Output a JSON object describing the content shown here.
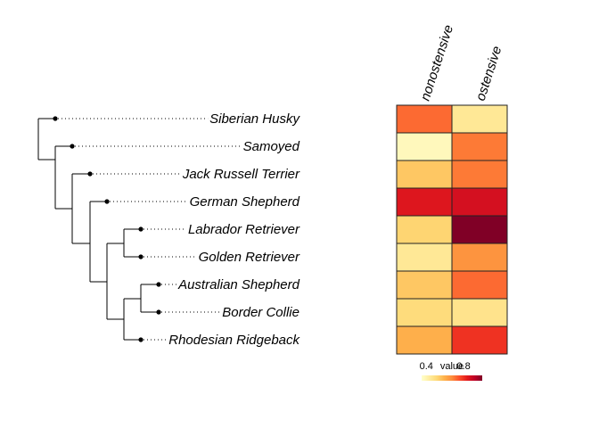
{
  "chart_data": {
    "type": "heatmap",
    "title": "",
    "rows": [
      "Siberian Husky",
      "Samoyed",
      "Jack Russell Terrier",
      "German Shepherd",
      "Labrador Retriever",
      "Golden Retriever",
      "Australian Shepherd",
      "Border Collie",
      "Rhodesian Ridgeback"
    ],
    "columns": [
      "nonostensive",
      "ostensive"
    ],
    "values": [
      [
        0.72,
        0.45
      ],
      [
        0.38,
        0.7
      ],
      [
        0.55,
        0.7
      ],
      [
        0.85,
        0.87
      ],
      [
        0.52,
        1.0
      ],
      [
        0.45,
        0.66
      ],
      [
        0.55,
        0.72
      ],
      [
        0.5,
        0.47
      ],
      [
        0.6,
        0.8
      ]
    ],
    "legend": {
      "title": "value",
      "ticks": [
        0.4,
        0.8
      ],
      "range": [
        0.35,
        1.0
      ]
    },
    "colors": [
      "#ffffcc",
      "#ffeda0",
      "#fed976",
      "#feb24c",
      "#fd8d3c",
      "#fc4e2a",
      "#e31a1c",
      "#bd0026",
      "#800026"
    ]
  }
}
